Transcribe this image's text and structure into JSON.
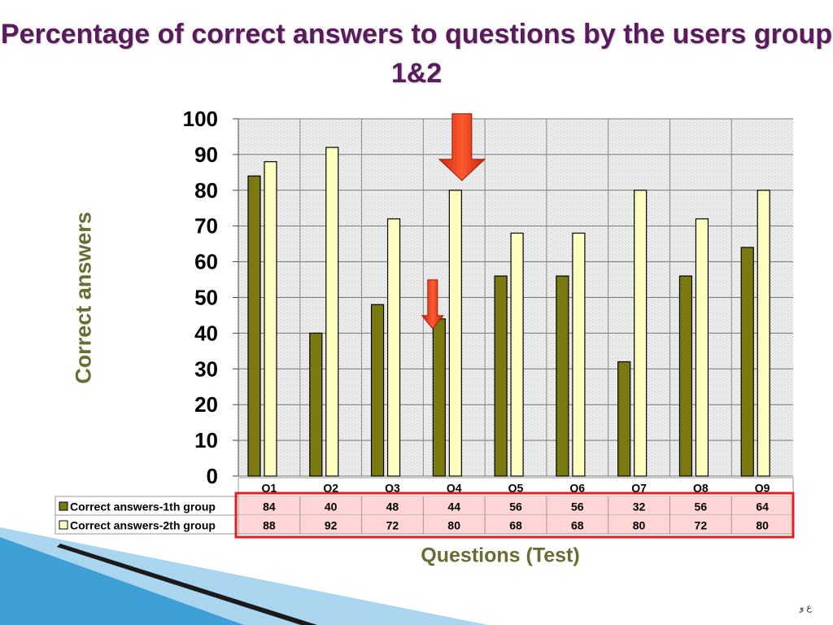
{
  "slide": {
    "title": "Percentage of correct answers to questions by the users group 1&2",
    "footer_mark": "ع و"
  },
  "colors": {
    "title": "#5b1a5e",
    "axis_label": "#6b6b32",
    "series_1": "#7a7a10",
    "series_2": "#ffffc0",
    "highlight": "#e02020",
    "arrow": "#e8401c",
    "accent_stripe": "#4aa6d6"
  },
  "chart_data": {
    "type": "bar",
    "ylabel": "Correct answers",
    "xlabel": "Questions (Test)",
    "ylim": [
      0,
      100
    ],
    "yticks": [
      0,
      10,
      20,
      30,
      40,
      50,
      60,
      70,
      80,
      90,
      100
    ],
    "categories": [
      "Q1",
      "Q2",
      "Q3",
      "Q4",
      "Q5",
      "Q6",
      "Q7",
      "Q8",
      "Q9"
    ],
    "series": [
      {
        "name": "Correct answers-1th group",
        "values": [
          84,
          40,
          48,
          44,
          56,
          56,
          32,
          56,
          64
        ]
      },
      {
        "name": "Correct answers-2th group",
        "values": [
          88,
          92,
          72,
          80,
          68,
          68,
          80,
          72,
          80
        ]
      }
    ],
    "grid": true,
    "legend": "data-table",
    "annotations": [
      {
        "type": "arrow",
        "category": "Q4",
        "series": "Correct answers-2th group",
        "size": "large"
      },
      {
        "type": "arrow",
        "category": "Q4",
        "series": "Correct answers-1th group",
        "size": "small"
      }
    ]
  }
}
